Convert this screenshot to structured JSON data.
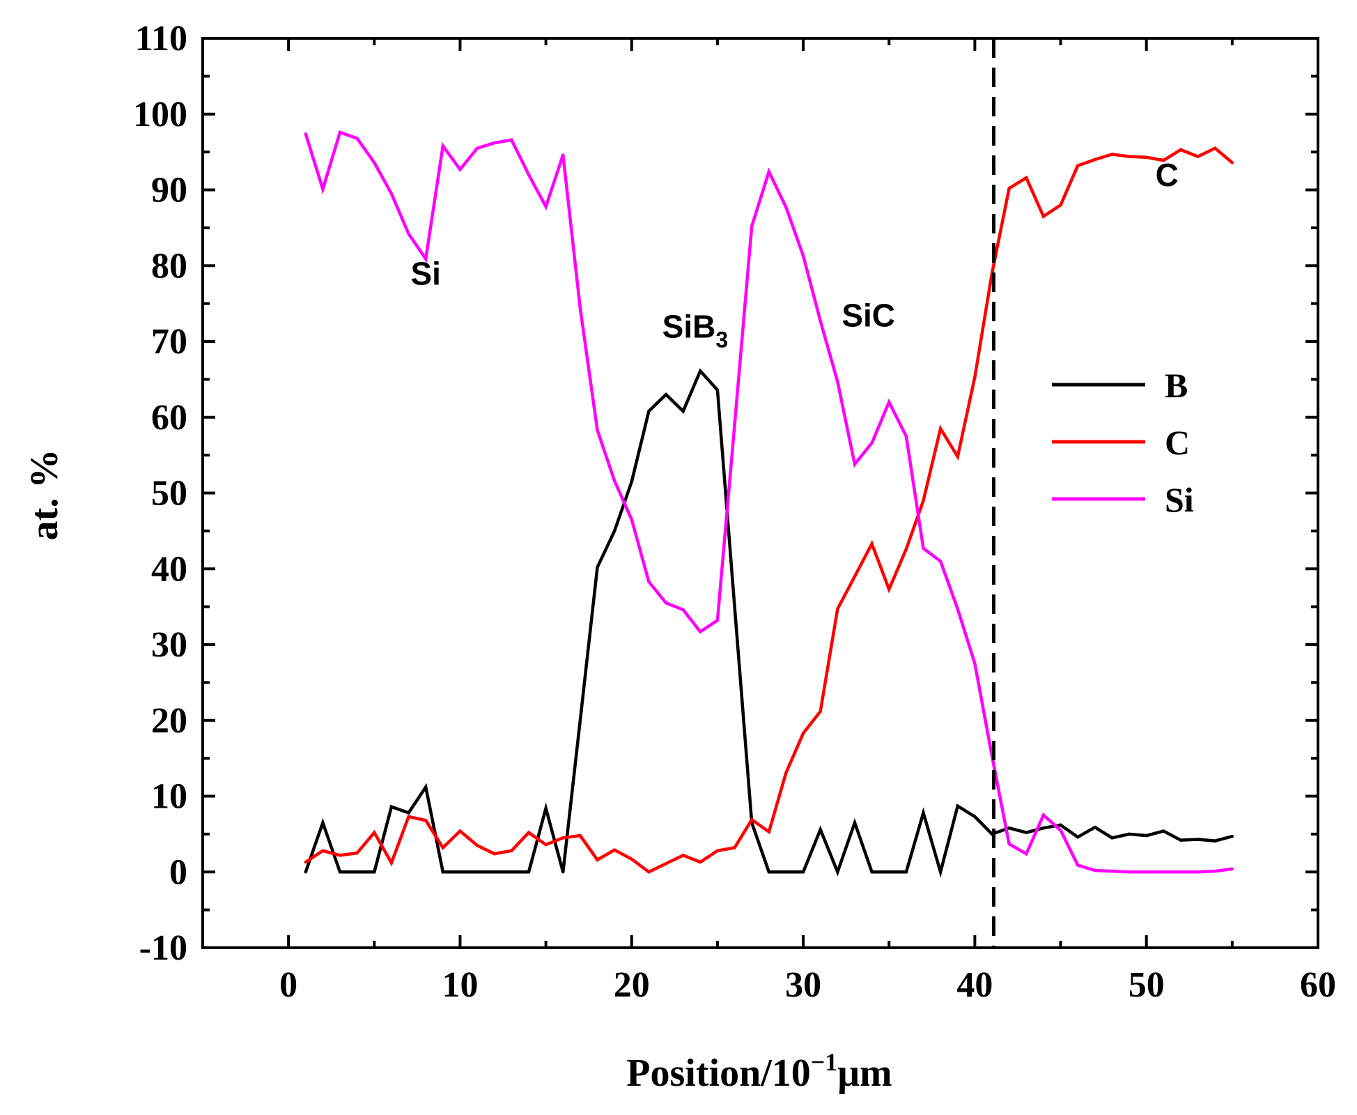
{
  "chart_data": {
    "type": "line",
    "title": "",
    "xlabel_main": "Position/10",
    "xlabel_sup": "−1",
    "xlabel_unit": "μm",
    "ylabel": "at. %",
    "xlim": [
      -5,
      60
    ],
    "ylim": [
      -10,
      110
    ],
    "xticks": [
      0,
      10,
      20,
      30,
      40,
      50,
      60
    ],
    "yticks": [
      -10,
      0,
      10,
      20,
      30,
      40,
      50,
      60,
      70,
      80,
      90,
      100,
      110
    ],
    "x": [
      1,
      2,
      3,
      4,
      5,
      6,
      7,
      8,
      9,
      10,
      11,
      12,
      13,
      14,
      15,
      16,
      17,
      18,
      19,
      20,
      21,
      22,
      23,
      24,
      25,
      26,
      27,
      28,
      29,
      30,
      31,
      32,
      33,
      34,
      35,
      36,
      37,
      38,
      39,
      40,
      41,
      42,
      43,
      44,
      45,
      46,
      47,
      48,
      49,
      50,
      51,
      52,
      53,
      54,
      55
    ],
    "series": [
      {
        "name": "B",
        "color": "#000000",
        "values": [
          0,
          6.5,
          0,
          0,
          0,
          8.6,
          7.8,
          11.2,
          0,
          0,
          0,
          0,
          0,
          0,
          8.4,
          0,
          20,
          40.2,
          45,
          51.5,
          60.8,
          63,
          60.8,
          66.1,
          63.6,
          35,
          6.5,
          0,
          0,
          0,
          5.6,
          0,
          6.5,
          0,
          0,
          0,
          7.8,
          0,
          8.7,
          7.3,
          5,
          5.8,
          5.2,
          5.8,
          6.2,
          4.6,
          5.9,
          4.5,
          5,
          4.8,
          5.4,
          4.2,
          4.3,
          4.1,
          4.7
        ]
      },
      {
        "name": "C",
        "color": "#ff0000",
        "values": [
          1.3,
          2.8,
          2.2,
          2.5,
          5.2,
          1.2,
          7.3,
          6.8,
          3.2,
          5.4,
          3.5,
          2.4,
          2.8,
          5.2,
          3.6,
          4.5,
          4.8,
          1.6,
          2.9,
          1.7,
          0,
          1.1,
          2.2,
          1.3,
          2.8,
          3.2,
          6.9,
          5.3,
          13.1,
          18.3,
          21.2,
          34.7,
          39,
          43.3,
          37.3,
          42.6,
          49,
          58.5,
          54.8,
          65.3,
          79,
          90.2,
          91.6,
          86.5,
          88,
          93.2,
          94,
          94.7,
          94.4,
          94.3,
          93.9,
          95.3,
          94.4,
          95.5,
          93.6
        ]
      },
      {
        "name": "Si",
        "color": "#ff00ff",
        "values": [
          97.4,
          90.1,
          97.6,
          96.8,
          93.6,
          89.5,
          84.2,
          80.9,
          95.8,
          92.7,
          95.5,
          96.2,
          96.6,
          92,
          87.8,
          94.6,
          74.4,
          58.3,
          51.6,
          46.5,
          38.3,
          35.5,
          34.6,
          31.7,
          33.2,
          59,
          85.2,
          92.4,
          87.7,
          81.3,
          72.7,
          64.7,
          53.8,
          56.6,
          62,
          57.5,
          42.7,
          41,
          34.7,
          27.5,
          15.3,
          3.7,
          2.4,
          7.5,
          5.5,
          0.9,
          0.2,
          0.1,
          0,
          0,
          0,
          0,
          0,
          0.1,
          0.4
        ]
      }
    ],
    "vline_x": 41.1,
    "annotations": [
      {
        "id": "si",
        "text": "Si",
        "x": 8,
        "y": 77.5
      },
      {
        "id": "sib3",
        "text": "SiB",
        "sub": "3",
        "x": 23.7,
        "y": 70.5
      },
      {
        "id": "sic",
        "text": "SiC",
        "x": 33.8,
        "y": 72
      },
      {
        "id": "c",
        "text": "C",
        "x": 51.2,
        "y": 90.5
      }
    ],
    "legend": {
      "position": "right",
      "entries": [
        "B",
        "C",
        "Si"
      ]
    }
  }
}
